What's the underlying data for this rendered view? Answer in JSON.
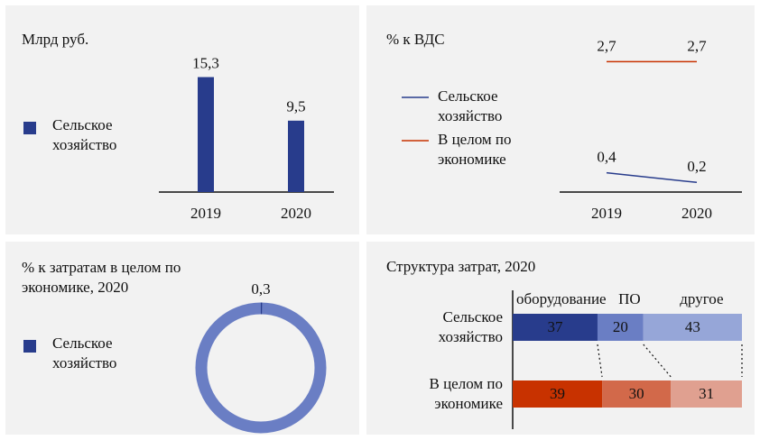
{
  "chart_data": [
    {
      "type": "bar",
      "title": "Млрд руб.",
      "categories": [
        "2019",
        "2020"
      ],
      "series": [
        {
          "name": "Сельское хозяйство",
          "color": "#283c8c",
          "values": [
            15.3,
            9.5
          ],
          "value_labels": [
            "15,3",
            "9,5"
          ]
        }
      ],
      "ylim": [
        0,
        18
      ]
    },
    {
      "type": "line",
      "title": "% к ВДС",
      "categories": [
        "2019",
        "2020"
      ],
      "series": [
        {
          "name": "Сельское хозяйство",
          "color": "#283c8c",
          "values": [
            0.4,
            0.2
          ],
          "value_labels": [
            "0,4",
            "0,2"
          ]
        },
        {
          "name": "В целом по экономике",
          "color": "#c83200",
          "values": [
            2.7,
            2.7
          ],
          "value_labels": [
            "2,7",
            "2,7"
          ]
        }
      ],
      "ylim": [
        0,
        2.8
      ]
    },
    {
      "type": "donut",
      "title": "% к затратам в целом по экономике, 2020",
      "series": [
        {
          "name": "Сельское хозяйство",
          "color": "#283c8c",
          "ring_color": "#6a7ec4",
          "values": [
            0.3
          ],
          "value_labels": [
            "0,3"
          ]
        }
      ]
    },
    {
      "type": "hbar_stacked",
      "title": "Структура затрат, 2020",
      "categories": [
        "Сельское хозяйство",
        "В целом по экономике"
      ],
      "series": [
        {
          "name": "оборудование",
          "colors": [
            "#283c8c",
            "#c83200"
          ],
          "values": [
            37,
            39
          ]
        },
        {
          "name": "ПО",
          "colors": [
            "#6a7ec4",
            "#d2694a"
          ],
          "values": [
            20,
            30
          ]
        },
        {
          "name": "другое",
          "colors": [
            "#96a6d8",
            "#e0a090"
          ],
          "values": [
            43,
            31
          ]
        }
      ],
      "xlim": [
        0,
        100
      ]
    }
  ]
}
